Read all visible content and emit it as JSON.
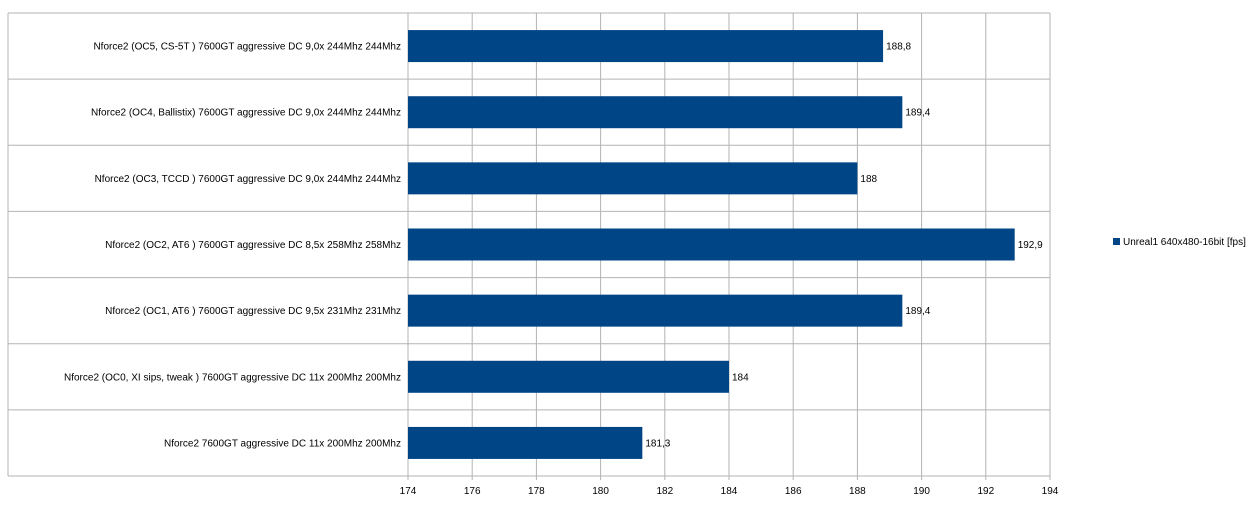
{
  "chart_data": {
    "type": "bar",
    "orientation": "horizontal",
    "categories": [
      "Nforce2 (OC5, CS-5T )  7600GT  aggressive  DC  9,0x  244Mhz  244Mhz",
      "Nforce2 (OC4, Ballistix)  7600GT  aggressive  DC  9,0x  244Mhz  244Mhz",
      "Nforce2 (OC3, TCCD )  7600GT  aggressive  DC  9,0x  244Mhz  244Mhz",
      "Nforce2 (OC2,  AT6 )  7600GT  aggressive  DC  8,5x  258Mhz  258Mhz",
      "Nforce2 (OC1,  AT6 )  7600GT  aggressive  DC  9,5x  231Mhz  231Mhz",
      "Nforce2 (OC0, XI sips, tweak )  7600GT  aggressive  DC    11x  200Mhz  200Mhz",
      "Nforce2  7600GT  aggressive  DC    11x  200Mhz  200Mhz"
    ],
    "series": [
      {
        "name": "Unreal1 640x480-16bit [fps]",
        "color": "#004586",
        "values": [
          188.8,
          189.4,
          188,
          192.9,
          189.4,
          184,
          181.3
        ],
        "value_labels": [
          "188,8",
          "189,4",
          "188",
          "192,9",
          "189,4",
          "184",
          "181,3"
        ]
      }
    ],
    "xlim": [
      174,
      194
    ],
    "x_ticks": [
      174,
      176,
      178,
      180,
      182,
      184,
      186,
      188,
      190,
      192,
      194
    ],
    "grid": true,
    "grid_color": "#b3b3b3",
    "legend_position": "right"
  }
}
